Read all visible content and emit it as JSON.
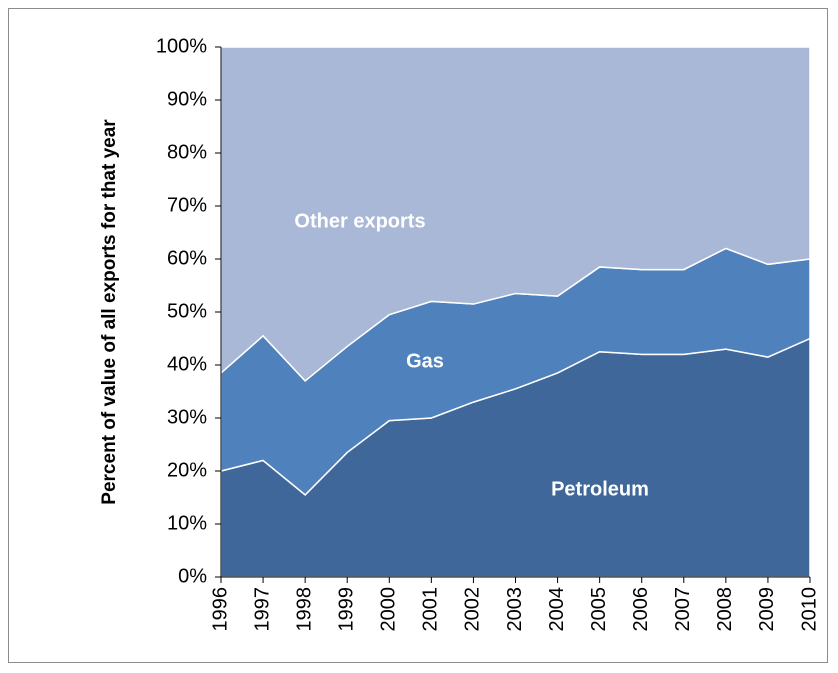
{
  "chart_data": {
    "type": "stacked-area",
    "y_label": "Percent of value of all exports for that year",
    "x": [
      1996,
      1997,
      1998,
      1999,
      2000,
      2001,
      2002,
      2003,
      2004,
      2005,
      2006,
      2007,
      2008,
      2009,
      2010
    ],
    "xlim": [
      1996,
      2010
    ],
    "ylim": [
      0,
      100
    ],
    "yticks": [
      {
        "value": 0,
        "label": "0%"
      },
      {
        "value": 10,
        "label": "10%"
      },
      {
        "value": 20,
        "label": "20%"
      },
      {
        "value": 30,
        "label": "30%"
      },
      {
        "value": 40,
        "label": "40%"
      },
      {
        "value": 50,
        "label": "50%"
      },
      {
        "value": 60,
        "label": "60%"
      },
      {
        "value": 70,
        "label": "70%"
      },
      {
        "value": 80,
        "label": "80%"
      },
      {
        "value": 90,
        "label": "90%"
      },
      {
        "value": 100,
        "label": "100%"
      }
    ],
    "series": [
      {
        "name": "Petroleum",
        "color": "#40679a",
        "values": [
          20,
          22,
          15.5,
          23.5,
          29.5,
          30,
          33,
          35.5,
          38.5,
          42.5,
          42,
          42,
          43,
          41.5,
          45
        ]
      },
      {
        "name": "Gas",
        "color": "#4f81bd",
        "values": [
          18.5,
          23.5,
          21.5,
          20,
          20,
          22,
          18.5,
          18,
          14.5,
          16,
          16,
          16,
          19,
          17.5,
          15
        ]
      },
      {
        "name": "Other exports",
        "color": "#a9b8d6",
        "values": [
          61.5,
          54.5,
          63,
          56.5,
          50.5,
          48,
          48.5,
          46.5,
          47,
          41.5,
          42,
          42,
          38,
          41,
          40
        ]
      }
    ]
  }
}
